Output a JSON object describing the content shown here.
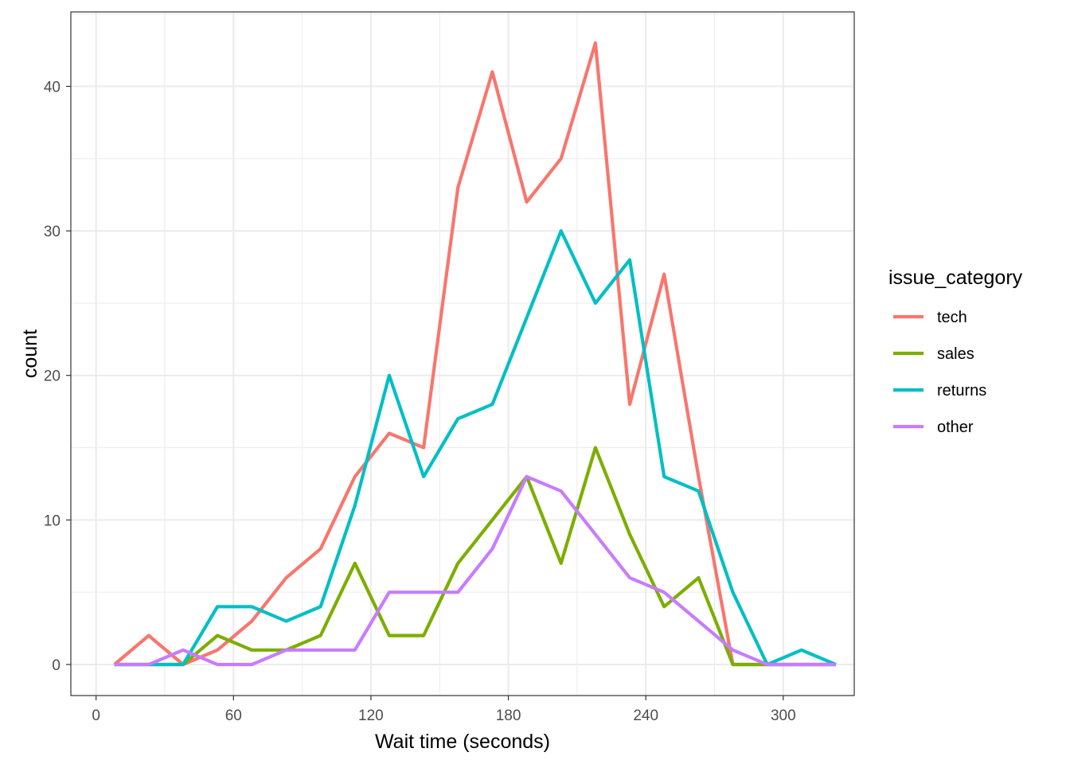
{
  "chart_data": {
    "type": "line",
    "xlabel": "Wait time (seconds)",
    "ylabel": "count",
    "xlim": [
      -11,
      331
    ],
    "ylim": [
      -2.15,
      45.15
    ],
    "x_ticks": [
      0,
      60,
      120,
      180,
      240,
      300
    ],
    "y_ticks": [
      0,
      10,
      20,
      30,
      40
    ],
    "grid": true,
    "legend": {
      "title": "issue_category",
      "position": "right"
    },
    "x": [
      8,
      23,
      38,
      53,
      68,
      83,
      98,
      113,
      128,
      143,
      158,
      173,
      188,
      203,
      218,
      233,
      248,
      263,
      278,
      293,
      308,
      323
    ],
    "series": [
      {
        "name": "tech",
        "color": "#F8766D",
        "values": [
          0,
          2,
          0,
          1,
          3,
          6,
          8,
          13,
          16,
          15,
          33,
          41,
          32,
          35,
          43,
          18,
          27,
          13,
          0,
          0,
          0,
          0
        ]
      },
      {
        "name": "sales",
        "color": "#7CAE00",
        "values": [
          0,
          0,
          0,
          2,
          1,
          1,
          2,
          7,
          2,
          2,
          7,
          10,
          13,
          7,
          15,
          9,
          4,
          6,
          0,
          0,
          0,
          0
        ]
      },
      {
        "name": "returns",
        "color": "#00BFC4",
        "values": [
          0,
          0,
          0,
          4,
          4,
          3,
          4,
          11,
          20,
          13,
          17,
          18,
          24,
          30,
          25,
          28,
          13,
          12,
          5,
          0,
          1,
          0
        ]
      },
      {
        "name": "other",
        "color": "#C77CFF",
        "values": [
          0,
          0,
          1,
          0,
          0,
          1,
          1,
          1,
          5,
          5,
          5,
          8,
          13,
          12,
          9,
          6,
          5,
          3,
          1,
          0,
          0,
          0
        ]
      }
    ]
  }
}
